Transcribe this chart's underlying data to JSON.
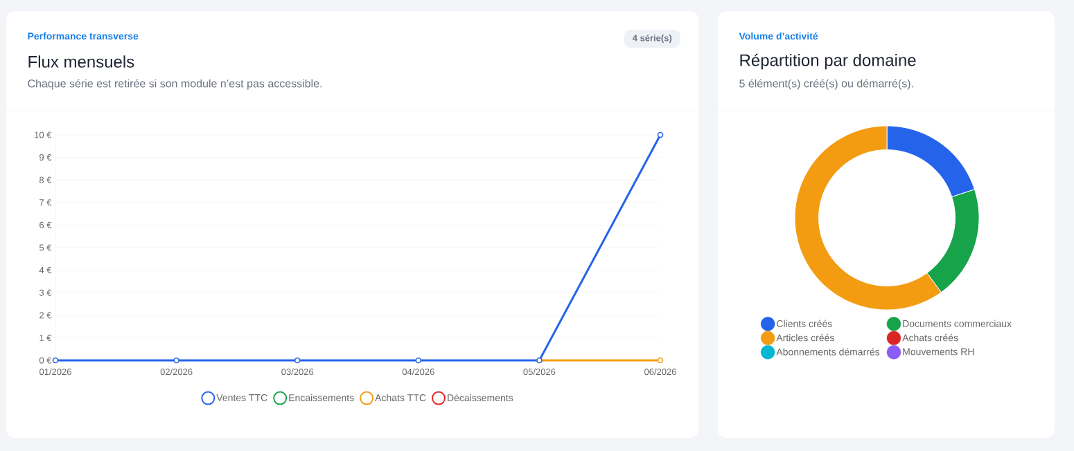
{
  "chart_data": [
    {
      "type": "line",
      "title": "Flux mensuels",
      "subtitle": "Chaque série est retirée si son module n’est pas accessible.",
      "annotations": [
        "Performance transverse",
        "4 série(s)"
      ],
      "categories": [
        "01/2026",
        "02/2026",
        "03/2026",
        "04/2026",
        "05/2026",
        "06/2026"
      ],
      "series": [
        {
          "name": "Ventes TTC",
          "color": "#2563eb",
          "values": [
            0,
            0,
            0,
            0,
            0,
            10
          ]
        },
        {
          "name": "Encaissements",
          "color": "#16a34a",
          "values": [
            null,
            null,
            null,
            null,
            null,
            null
          ]
        },
        {
          "name": "Achats TTC",
          "color": "#f39c12",
          "values": [
            null,
            null,
            null,
            null,
            0,
            0
          ]
        },
        {
          "name": "Décaissements",
          "color": "#dc2626",
          "values": [
            null,
            null,
            null,
            null,
            null,
            null
          ]
        }
      ],
      "ylim": [
        0,
        10
      ],
      "yticks": [
        {
          "value": 0,
          "label": "0 €"
        },
        {
          "value": 1,
          "label": "1 €"
        },
        {
          "value": 2,
          "label": "2 €"
        },
        {
          "value": 3,
          "label": "3 €"
        },
        {
          "value": 4,
          "label": "4 €"
        },
        {
          "value": 5,
          "label": "5 €"
        },
        {
          "value": 6,
          "label": "6 €"
        },
        {
          "value": 7,
          "label": "7 €"
        },
        {
          "value": 8,
          "label": "8 €"
        },
        {
          "value": 9,
          "label": "9 €"
        },
        {
          "value": 10,
          "label": "10 €"
        }
      ],
      "grid": "y",
      "legend": "bottom",
      "marker": "circle"
    },
    {
      "type": "donut",
      "title": "Répartition par domaine",
      "subtitle": "5 élément(s) créé(s) ou démarré(s).",
      "annotations": [
        "Volume d’activité"
      ],
      "categories": [
        "Clients créés",
        "Documents commerciaux",
        "Articles créés",
        "Achats créés",
        "Abonnements démarrés",
        "Mouvements RH"
      ],
      "values": [
        20,
        20,
        60,
        0,
        0,
        0
      ],
      "colors": [
        "#2563eb",
        "#16a34a",
        "#f39c12",
        "#dc2626",
        "#06b6d4",
        "#8b5cf6"
      ],
      "legend": "bottom"
    }
  ]
}
